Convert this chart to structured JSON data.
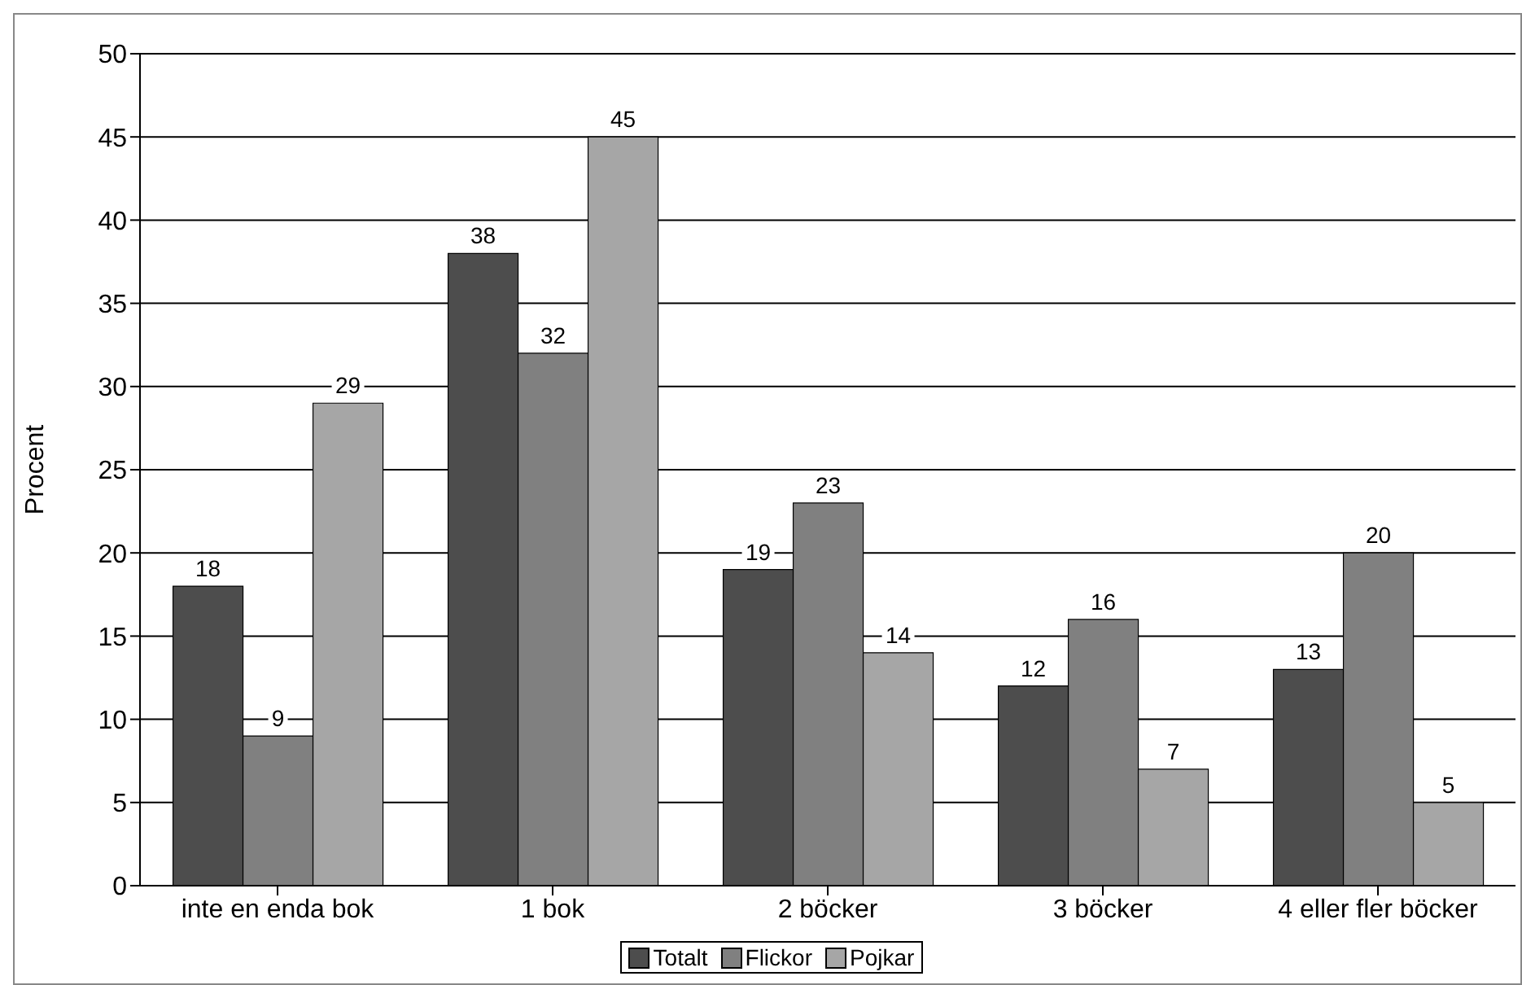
{
  "chart_data": {
    "type": "bar",
    "ylabel": "Procent",
    "categories": [
      "inte en enda bok",
      "1 bok",
      "2 böcker",
      "3 böcker",
      "4 eller fler böcker"
    ],
    "series": [
      {
        "name": "Totalt",
        "color": "#4d4d4d",
        "values": [
          18,
          38,
          19,
          12,
          13
        ]
      },
      {
        "name": "Flickor",
        "color": "#808080",
        "values": [
          9,
          32,
          23,
          16,
          20
        ]
      },
      {
        "name": "Pojkar",
        "color": "#a6a6a6",
        "values": [
          29,
          45,
          14,
          7,
          5
        ]
      }
    ],
    "ylim": [
      0,
      50
    ],
    "yticks": [
      0,
      5,
      10,
      15,
      20,
      25,
      30,
      35,
      40,
      45,
      50
    ],
    "grid": "y",
    "legend": "bottom",
    "data_labels": true
  }
}
